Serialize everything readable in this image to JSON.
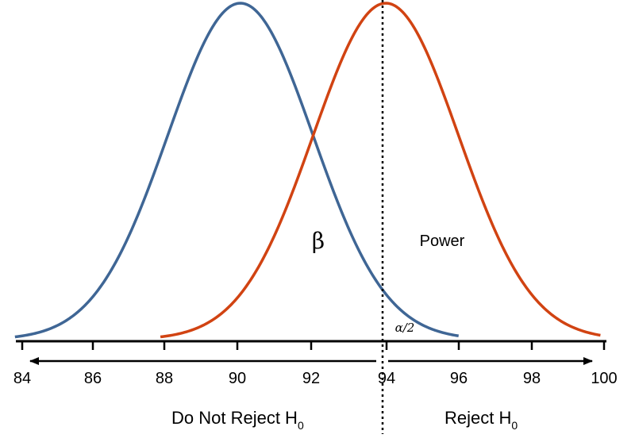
{
  "axis": {
    "ticks": [
      "84",
      "86",
      "88",
      "90",
      "92",
      "94",
      "96",
      "98",
      "100"
    ]
  },
  "curves": {
    "null_color": "#3f6695",
    "alt_color": "#d14312"
  },
  "labels": {
    "beta": "β",
    "power": "Power",
    "alpha_half": "α/2",
    "do_not_reject": "Do Not Reject H",
    "reject": "Reject H",
    "h_subscript": "0"
  }
}
